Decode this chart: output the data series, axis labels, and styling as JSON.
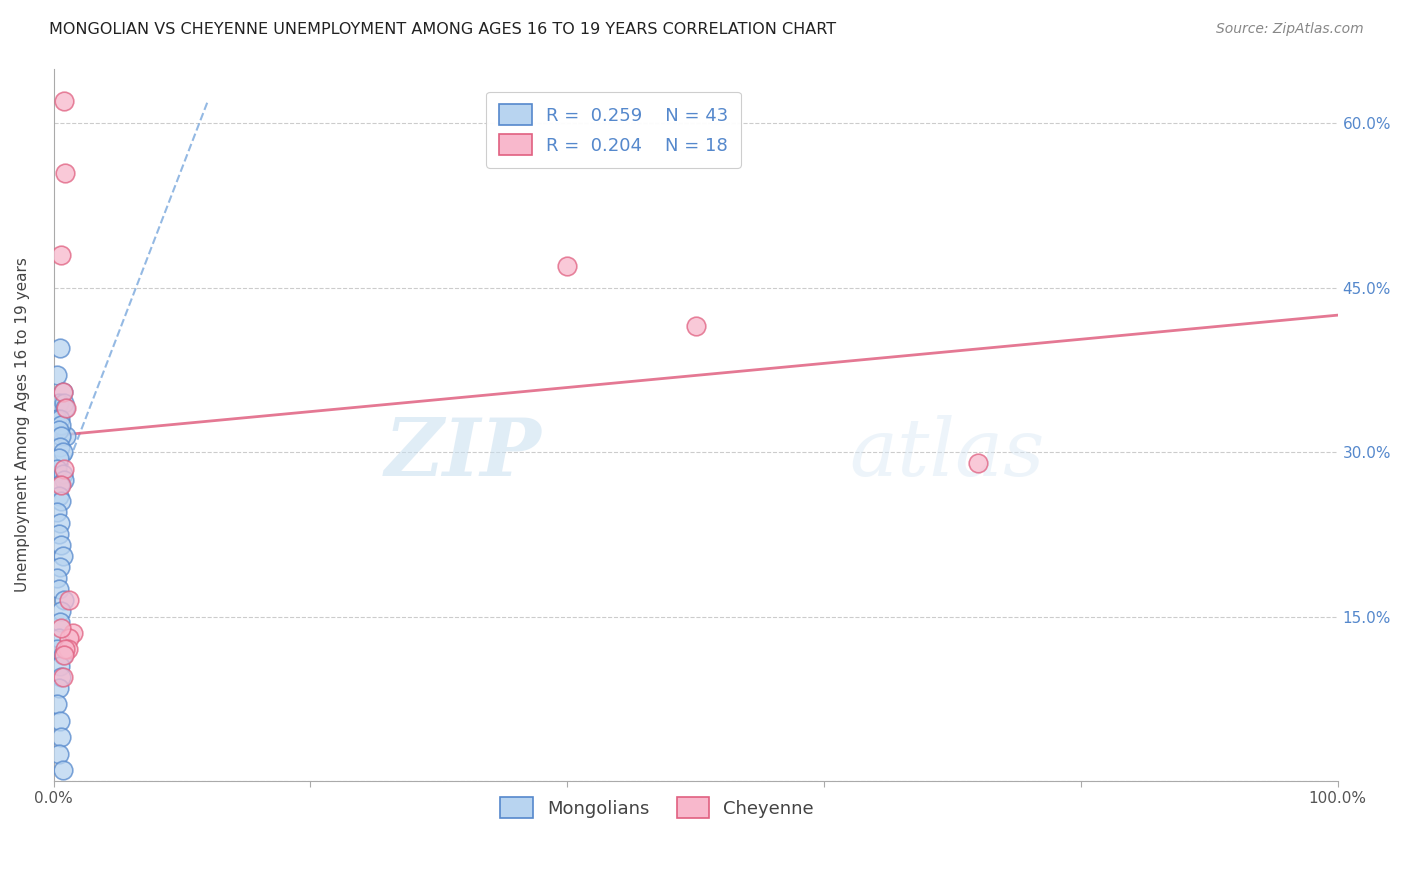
{
  "title": "MONGOLIAN VS CHEYENNE UNEMPLOYMENT AMONG AGES 16 TO 19 YEARS CORRELATION CHART",
  "source": "Source: ZipAtlas.com",
  "ylabel": "Unemployment Among Ages 16 to 19 years",
  "xlim": [
    0.0,
    1.0
  ],
  "ylim": [
    0.0,
    0.65
  ],
  "watermark_zip": "ZIP",
  "watermark_atlas": "atlas",
  "legend_mongolian_R": "0.259",
  "legend_mongolian_N": "43",
  "legend_cheyenne_R": "0.204",
  "legend_cheyenne_N": "18",
  "mongolian_face_color": "#b8d4f0",
  "mongolian_edge_color": "#5588cc",
  "cheyenne_face_color": "#f8b8cc",
  "cheyenne_edge_color": "#e06080",
  "mongolian_line_color": "#7aa8dd",
  "cheyenne_line_color": "#e06080",
  "mongolian_scatter_x": [
    0.005,
    0.01,
    0.003,
    0.007,
    0.004,
    0.008,
    0.009,
    0.003,
    0.005,
    0.006,
    0.004,
    0.006,
    0.005,
    0.007,
    0.004,
    0.003,
    0.007,
    0.008,
    0.005,
    0.004,
    0.006,
    0.003,
    0.005,
    0.004,
    0.006,
    0.007,
    0.005,
    0.003,
    0.004,
    0.008,
    0.006,
    0.005,
    0.004,
    0.003,
    0.007,
    0.005,
    0.006,
    0.004,
    0.003,
    0.005,
    0.006,
    0.004,
    0.007
  ],
  "mongolian_scatter_y": [
    0.395,
    0.315,
    0.37,
    0.355,
    0.345,
    0.345,
    0.34,
    0.33,
    0.33,
    0.325,
    0.32,
    0.315,
    0.305,
    0.3,
    0.295,
    0.285,
    0.28,
    0.275,
    0.27,
    0.26,
    0.255,
    0.245,
    0.235,
    0.225,
    0.215,
    0.205,
    0.195,
    0.185,
    0.175,
    0.165,
    0.155,
    0.145,
    0.13,
    0.12,
    0.115,
    0.105,
    0.095,
    0.085,
    0.07,
    0.055,
    0.04,
    0.025,
    0.01
  ],
  "cheyenne_scatter_x": [
    0.008,
    0.009,
    0.006,
    0.007,
    0.01,
    0.008,
    0.4,
    0.5,
    0.72,
    0.006,
    0.012,
    0.015,
    0.012,
    0.011,
    0.009,
    0.008,
    0.007,
    0.006
  ],
  "cheyenne_scatter_y": [
    0.62,
    0.555,
    0.48,
    0.355,
    0.34,
    0.285,
    0.47,
    0.415,
    0.29,
    0.27,
    0.165,
    0.135,
    0.13,
    0.12,
    0.12,
    0.115,
    0.095,
    0.14
  ],
  "mongolian_trendline_x": [
    0.0,
    0.12
  ],
  "mongolian_trendline_y": [
    0.255,
    0.62
  ],
  "cheyenne_trendline_x": [
    0.0,
    1.0
  ],
  "cheyenne_trendline_y": [
    0.315,
    0.425
  ]
}
